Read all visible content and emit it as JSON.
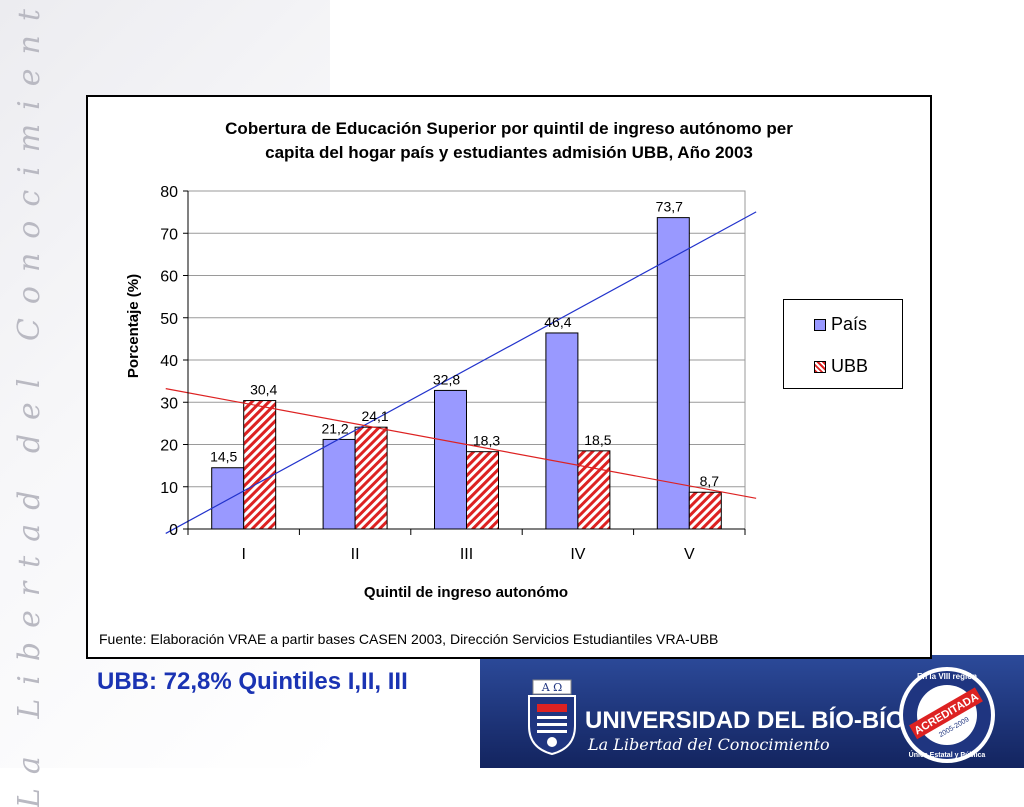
{
  "slide": {
    "side_motto": "La Libertad del Conocimiento",
    "headline": "UBB: 72,8% Quintiles I,II, III",
    "university_name": "UNIVERSIDAD DEL BÍO-BÍO",
    "university_motto": "La Libertad del Conocimiento",
    "accreditation": {
      "top": "En la VIII región",
      "main": "ACREDITADA",
      "years": "2005-2009",
      "bottom": "Única Estatal y Pública"
    },
    "crest_letters": "A Ω",
    "colors": {
      "headline": "#1a33b3",
      "band": "#1f3580",
      "pais": "#9999ff",
      "ubb": "#dd2222"
    }
  },
  "chart_data": {
    "type": "bar",
    "title_lines": [
      "Cobertura de Educación Superior por quintil de ingreso autónomo per",
      "capita del hogar país y estudiantes admisión UBB, Año 2003"
    ],
    "categories": [
      "I",
      "II",
      "III",
      "IV",
      "V"
    ],
    "series": [
      {
        "name": "País",
        "values": [
          14.5,
          21.2,
          32.8,
          46.4,
          73.7
        ],
        "labels": [
          "14,5",
          "21,2",
          "32,8",
          "46,4",
          "73,7"
        ],
        "color": "#9999ff",
        "pattern": "solid"
      },
      {
        "name": "UBB",
        "values": [
          30.4,
          24.1,
          18.3,
          18.5,
          8.7
        ],
        "labels": [
          "30,4",
          "24,1",
          "18,3",
          "18,5",
          "8,7"
        ],
        "color": "#dd2222",
        "pattern": "diagonal-stripes"
      }
    ],
    "trendlines": [
      {
        "series": "País",
        "color": "#2233cc"
      },
      {
        "series": "UBB",
        "color": "#dd2222"
      }
    ],
    "ylim": [
      0,
      80
    ],
    "yticks": [
      0,
      10,
      20,
      30,
      40,
      50,
      60,
      70,
      80
    ],
    "ylabel": "Porcentaje (%)",
    "xlabel": "Quintil de ingreso autonómo",
    "grid": true,
    "legend_position": "right",
    "source": "Fuente: Elaboración VRAE a partir bases CASEN 2003, Dirección Servicios Estudiantiles VRA-UBB"
  }
}
